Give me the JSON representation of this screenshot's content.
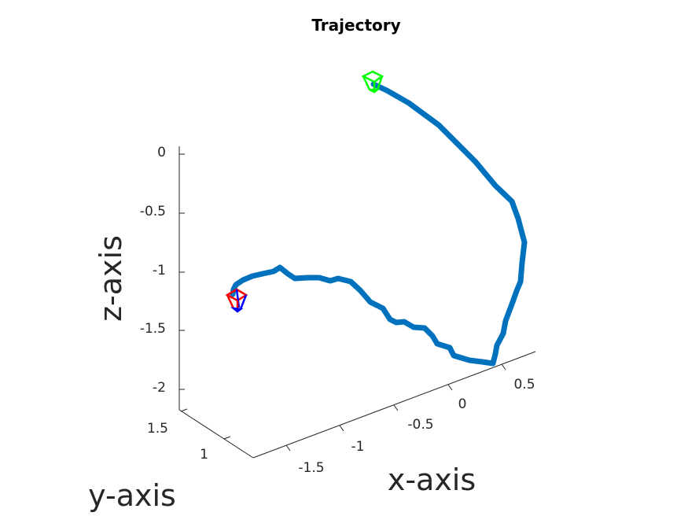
{
  "chart_data": {
    "type": "line",
    "title": "Trajectory",
    "xlabel": "x-axis",
    "ylabel": "y-axis",
    "zlabel": "z-axis",
    "x_ticks": [
      "-1.5",
      "-1",
      "-0.5",
      "0",
      "0.5"
    ],
    "y_ticks": [
      "1",
      "1.5"
    ],
    "z_ticks": [
      "0",
      "-0.5",
      "-1",
      "-1.5",
      "-2"
    ],
    "colors": {
      "trajectory": "#0072bd",
      "start_marker": "#00ff00",
      "end_marker_front": "#ff0000",
      "end_marker_back": "#0000ff",
      "axes": "#262626"
    },
    "series": [
      {
        "x": [
          0.5,
          0.48,
          0.45,
          0.42,
          0.35,
          0.28,
          0.2,
          0.12,
          0.05,
          -0.02,
          -0.1,
          -0.18,
          -0.25,
          -0.3,
          -0.35,
          -0.42,
          -0.5,
          -0.58,
          -0.65,
          -0.7,
          -0.75,
          -0.82,
          -0.9,
          -0.98,
          -1.05,
          -1.12,
          -1.2,
          -1.28,
          -1.35,
          -1.42,
          -1.5,
          -1.55,
          -1.6,
          -1.65,
          -1.7
        ],
        "y": [
          1.2,
          1.25,
          1.3,
          1.35,
          1.4,
          1.45,
          1.5,
          1.55,
          1.6,
          1.62,
          1.64,
          1.66,
          1.68,
          1.7,
          1.72,
          1.73,
          1.74,
          1.75,
          1.76,
          1.77,
          1.78,
          1.79,
          1.8,
          1.8,
          1.8,
          1.8,
          1.8,
          1.8,
          1.8,
          1.8,
          1.8,
          1.8,
          1.8,
          1.8,
          1.8
        ],
        "z": [
          0.25,
          0.1,
          -0.1,
          -0.3,
          -0.55,
          -0.8,
          -1.0,
          -1.2,
          -1.3,
          -1.35,
          -1.4,
          -1.42,
          -1.43,
          -1.42,
          -1.4,
          -1.38,
          -1.36,
          -1.33,
          -1.3,
          -1.28,
          -1.25,
          -1.22,
          -1.2,
          -1.18,
          -1.17,
          -1.16,
          -1.16,
          -1.15,
          -1.15,
          -1.14,
          -1.13,
          -1.13,
          -1.13,
          -1.13,
          -1.13
        ]
      }
    ]
  }
}
